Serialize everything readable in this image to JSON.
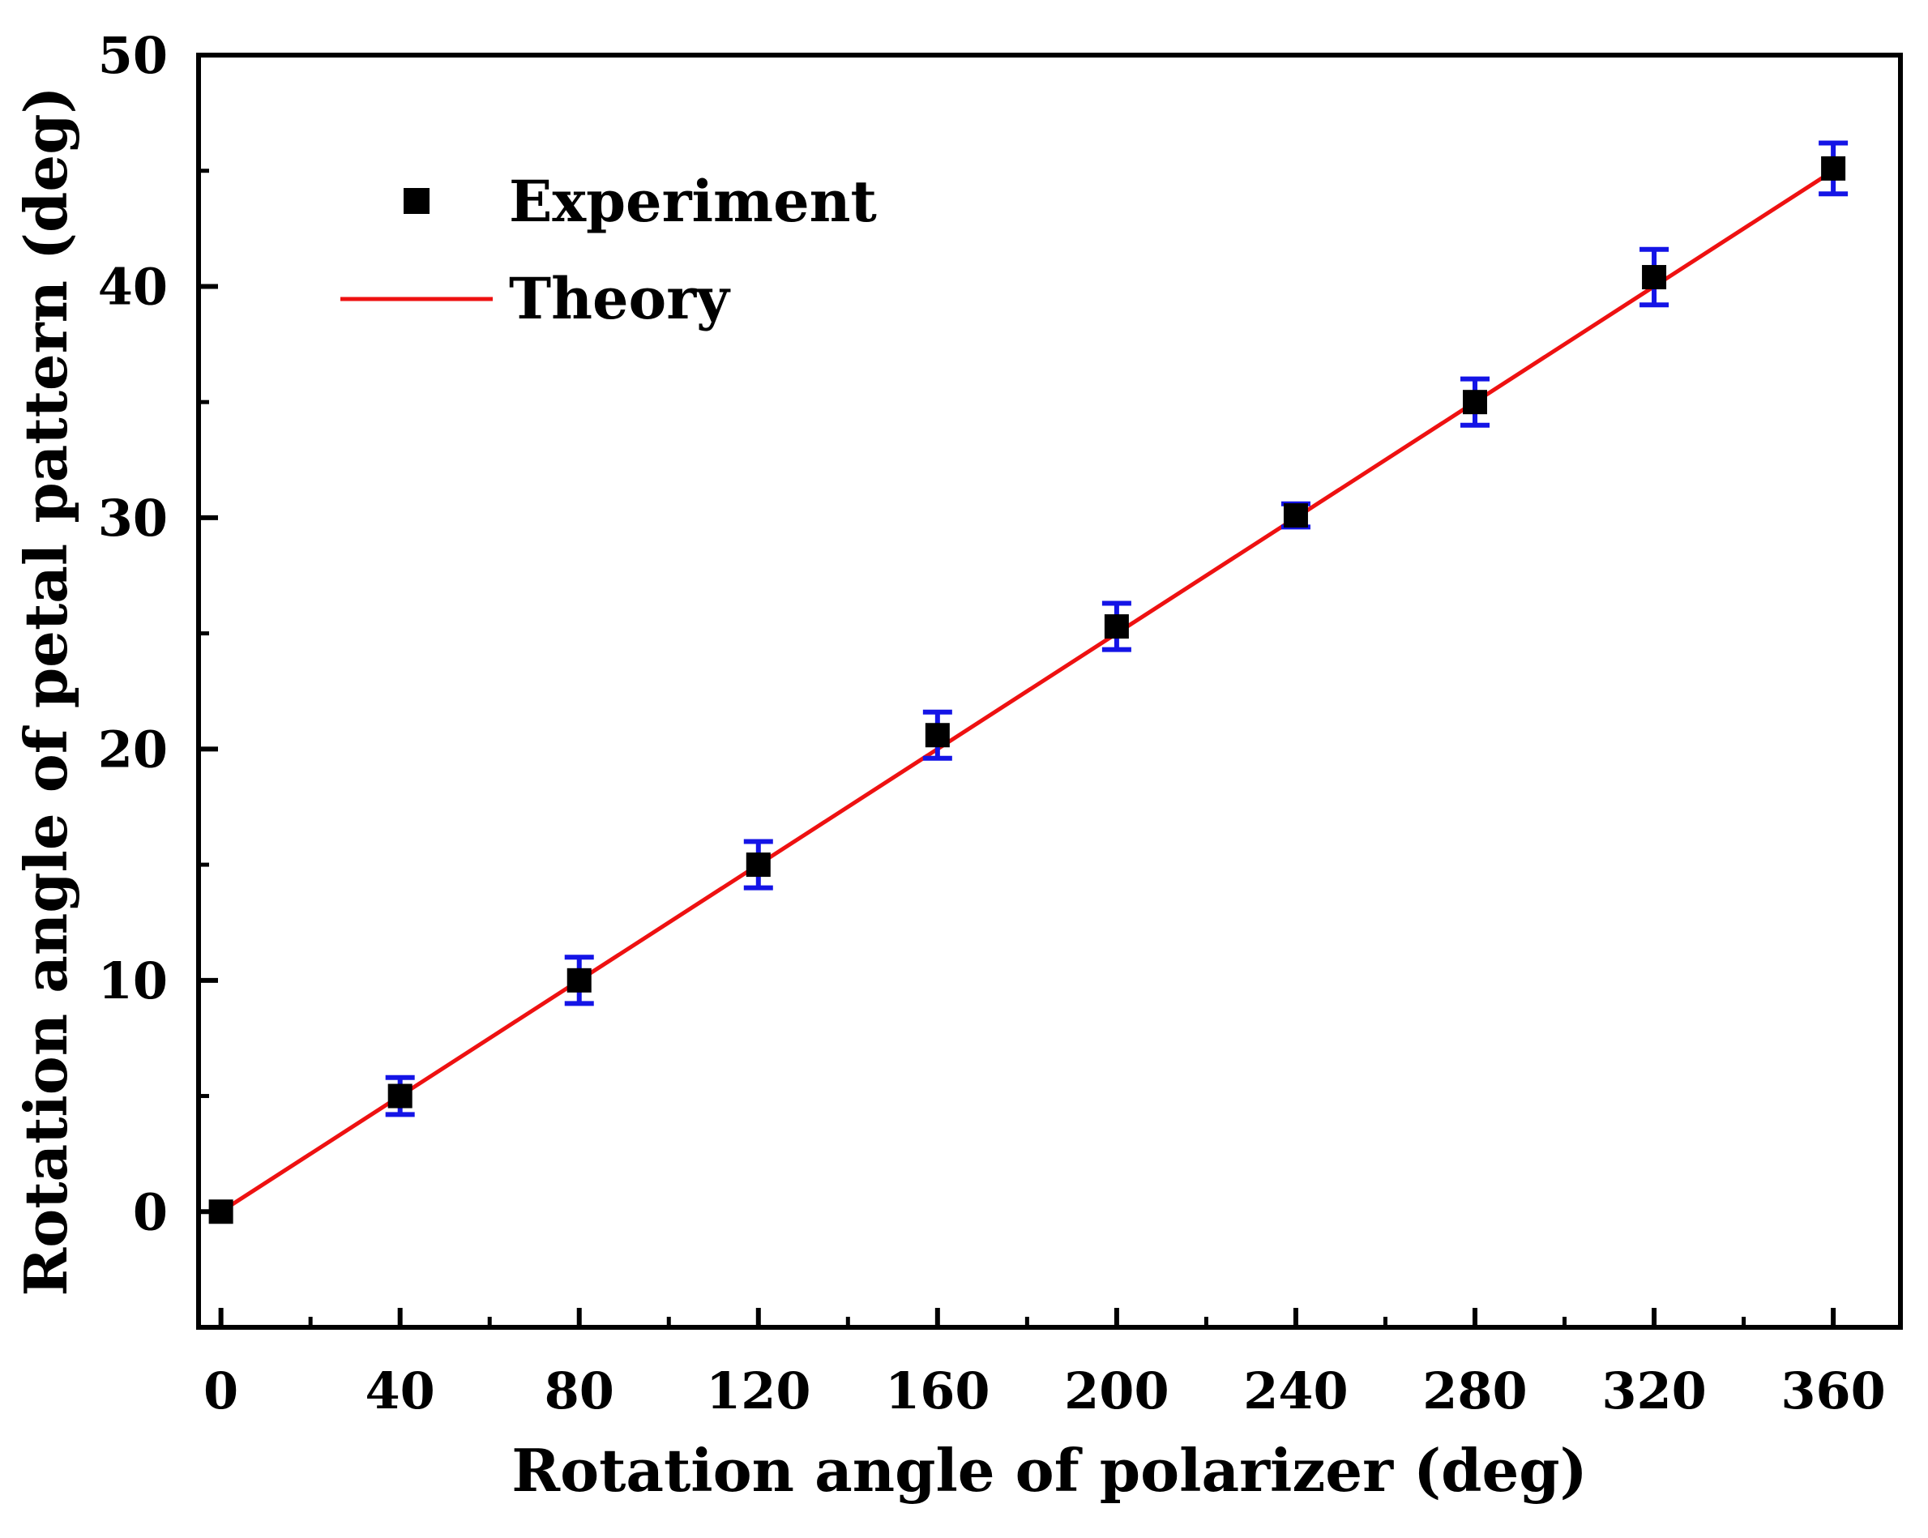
{
  "chart_data": {
    "type": "scatter",
    "title": "",
    "xlabel": "Rotation angle of polarizer (deg)",
    "ylabel": "Rotation angle of petal pattern (deg)",
    "xlim": [
      -5,
      375
    ],
    "ylim": [
      -5,
      50
    ],
    "xticks": [
      0,
      40,
      80,
      120,
      160,
      200,
      240,
      280,
      320,
      360
    ],
    "yticks": [
      0,
      10,
      20,
      30,
      40,
      50
    ],
    "xtick_labels": [
      "0",
      "40",
      "80",
      "120",
      "160",
      "200",
      "240",
      "280",
      "320",
      "360"
    ],
    "ytick_labels": [
      "0",
      "10",
      "20",
      "30",
      "40",
      "50"
    ],
    "grid": false,
    "legend_position": "top-left",
    "series": [
      {
        "name": "Experiment",
        "kind": "scatter",
        "marker": "square",
        "color": "#000000",
        "errorbar_color": "#1414e6",
        "x": [
          0,
          40,
          80,
          120,
          160,
          200,
          240,
          280,
          320,
          360
        ],
        "y": [
          0,
          5.0,
          10.0,
          15.0,
          20.6,
          25.3,
          30.1,
          35.0,
          40.4,
          45.1
        ],
        "err": [
          0,
          0.8,
          1.0,
          1.0,
          1.0,
          1.0,
          0.5,
          1.0,
          1.2,
          1.1
        ]
      },
      {
        "name": "Theory",
        "kind": "line",
        "color": "#ee1111",
        "x": [
          0,
          360
        ],
        "y": [
          0,
          45
        ]
      }
    ]
  }
}
